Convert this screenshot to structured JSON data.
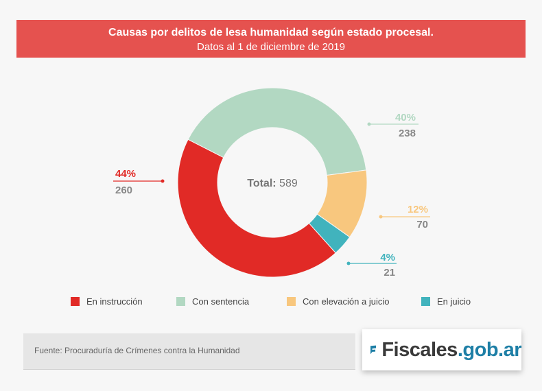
{
  "header": {
    "title": "Causas por delitos de lesa humanidad según estado procesal.",
    "subtitle": "Datos al 1 de diciembre de 2019"
  },
  "chart_data": {
    "type": "pie",
    "donut": true,
    "center_label": "Total:",
    "center_value": "589",
    "slices": [
      {
        "name": "En instrucción",
        "value": 260,
        "percent_label": "44%",
        "color": "#e12a26"
      },
      {
        "name": "Con sentencia",
        "value": 238,
        "percent_label": "40%",
        "color": "#b2d8c2"
      },
      {
        "name": "Con elevación a juicio",
        "value": 70,
        "percent_label": "12%",
        "color": "#f8c77e"
      },
      {
        "name": "En juicio",
        "value": 21,
        "percent_label": "4%",
        "color": "#41b3bd"
      }
    ],
    "legend_position": "bottom"
  },
  "source": {
    "text": "Fuente: Procuraduría de Crímenes contra la Humanidad"
  },
  "logo": {
    "name": "Fiscales",
    "domain": ".gob.ar",
    "icon": "fiscales-flag-icon"
  },
  "colors": {
    "header_bg": "#e5524f",
    "value_gray": "#888888",
    "logo_blue": "#1e7fa6"
  }
}
